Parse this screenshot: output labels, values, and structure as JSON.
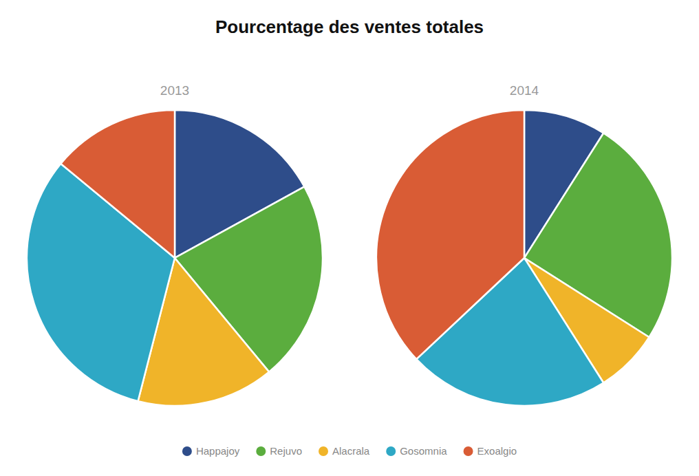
{
  "chart_data": {
    "type": "pie",
    "title": "Pourcentage des ventes totales",
    "categories": [
      "Happajoy",
      "Rejuvo",
      "Alacrala",
      "Gosomnia",
      "Exoalgio"
    ],
    "colors": [
      "#2E4D8A",
      "#5BAD3E",
      "#F0B429",
      "#2EA8C5",
      "#D95C35"
    ],
    "series": [
      {
        "name": "2013",
        "values": [
          17,
          22,
          15,
          32,
          14
        ]
      },
      {
        "name": "2014",
        "values": [
          9,
          25,
          7,
          22,
          37
        ]
      }
    ],
    "legend": "bottom"
  }
}
